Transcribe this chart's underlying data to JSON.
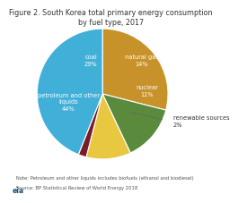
{
  "title_line1": "Figure 2. South Korea total primary energy consumption",
  "title_line2": "by fuel type, 2017",
  "slices": [
    {
      "label": "coal\n29%",
      "value": 29,
      "color": "#c8922a"
    },
    {
      "label": "natural gas\n14%",
      "value": 14,
      "color": "#5a8a3c"
    },
    {
      "label": "nuclear\n11%",
      "value": 11,
      "color": "#e8c840"
    },
    {
      "label": "renewable sources\n2%",
      "value": 2,
      "color": "#7b1a28"
    },
    {
      "label": "petroleum and other\nliquids\n44%",
      "value": 44,
      "color": "#41b0d8"
    }
  ],
  "note_line1": "   Note: Petroleum and other liquids includes biofuels (ethanol and biodiesel)",
  "note_line2": "   Source: BP Statistical Review of World Energy 2018",
  "startangle": 90,
  "background_color": "#ffffff",
  "title_fontsize": 5.8,
  "label_fontsize": 4.8,
  "note_fontsize": 3.8
}
